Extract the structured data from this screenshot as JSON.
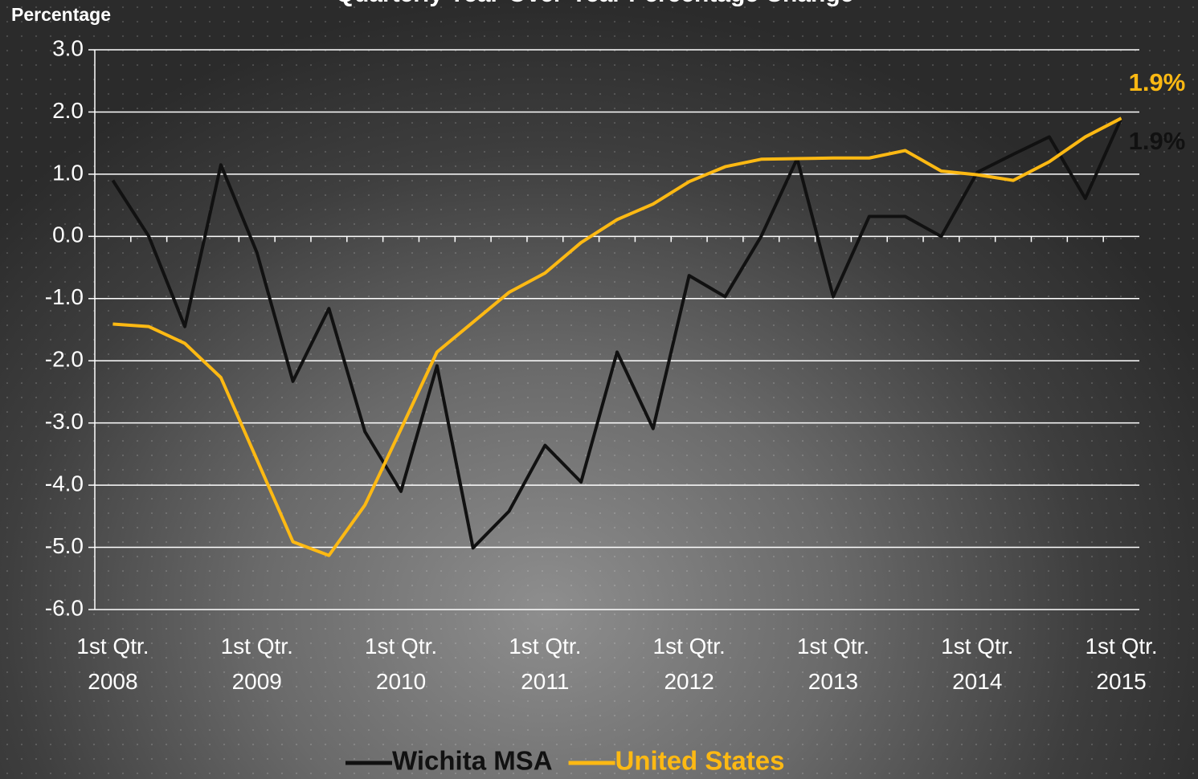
{
  "chart_data": {
    "type": "line",
    "title": "Quarterly Year-Over-Year Percentage Change",
    "y_label": "Percentage",
    "categories": [
      "1st Qtr. 2008",
      null,
      null,
      null,
      "1st Qtr. 2009",
      null,
      null,
      null,
      "1st Qtr. 2010",
      null,
      null,
      null,
      "1st Qtr. 2011",
      null,
      null,
      null,
      "1st Qtr. 2012",
      null,
      null,
      null,
      "1st Qtr. 2013",
      null,
      null,
      null,
      "1st Qtr. 2014",
      null,
      null,
      null,
      "1st Qtr. 2015"
    ],
    "series": [
      {
        "name": "Wichita MSA",
        "color": "#111111",
        "values": [
          0.9,
          0.0,
          -1.45,
          1.15,
          -0.26,
          -2.33,
          -1.16,
          -3.14,
          -4.1,
          -2.08,
          -5.01,
          -4.42,
          -3.36,
          -3.95,
          -1.86,
          -3.09,
          -0.63,
          -0.97,
          0.0,
          1.25,
          -0.97,
          0.32,
          0.32,
          0.0,
          1.03,
          1.32,
          1.6,
          0.61,
          1.9
        ],
        "value_labels": [
          null,
          null,
          null,
          null,
          null,
          null,
          null,
          null,
          null,
          null,
          null,
          null,
          null,
          null,
          null,
          null,
          null,
          null,
          null,
          null,
          null,
          null,
          null,
          null,
          null,
          null,
          null,
          null,
          "1.9%"
        ]
      },
      {
        "name": "United States",
        "color": "#fdb913",
        "values": [
          -1.41,
          -1.45,
          -1.72,
          -2.27,
          -3.59,
          -4.91,
          -5.13,
          -4.32,
          -3.1,
          -1.86,
          -1.38,
          -0.9,
          -0.59,
          -0.1,
          0.27,
          0.52,
          0.88,
          1.12,
          1.24,
          1.25,
          1.26,
          1.26,
          1.38,
          1.05,
          0.99,
          0.9,
          1.2,
          1.6,
          1.9
        ],
        "value_labels": [
          null,
          null,
          null,
          null,
          null,
          null,
          null,
          null,
          null,
          null,
          null,
          null,
          null,
          null,
          null,
          null,
          null,
          null,
          null,
          null,
          null,
          null,
          null,
          null,
          null,
          null,
          null,
          null,
          "1.9%"
        ]
      }
    ],
    "ylim": [
      -6,
      3
    ],
    "yticks": [
      {
        "value": -6,
        "label": "-6.0"
      },
      {
        "value": -5,
        "label": "-5.0"
      },
      {
        "value": -4,
        "label": "-4.0"
      },
      {
        "value": -3,
        "label": "-3.0"
      },
      {
        "value": -2,
        "label": "-2.0"
      },
      {
        "value": -1,
        "label": "-1.0"
      },
      {
        "value": 0,
        "label": "0.0"
      },
      {
        "value": 1,
        "label": "1.0"
      },
      {
        "value": 2,
        "label": "2.0"
      },
      {
        "value": 3,
        "label": "3.0"
      }
    ],
    "grid": true,
    "legend": "bottom"
  }
}
